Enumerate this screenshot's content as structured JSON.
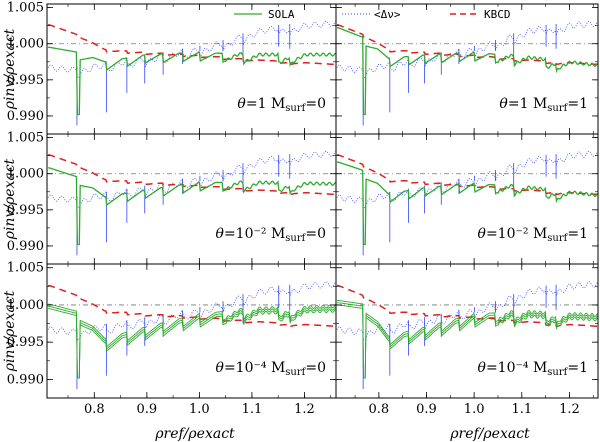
{
  "chart_data": {
    "type": "line",
    "layout": "3x2 grid of panels, shared axes",
    "xlabel": "ρref/ρexact",
    "ylabel": "ρinv/ρexact",
    "xlim": [
      0.71,
      1.26
    ],
    "ylim": [
      0.9875,
      1.0055
    ],
    "x_ticks": [
      0.8,
      0.9,
      1.0,
      1.1,
      1.2
    ],
    "x_tick_labels": [
      "0.8",
      "0.9",
      "1.0",
      "1.1",
      "1.2"
    ],
    "y_ticks": [
      0.99,
      0.995,
      1.0,
      1.005
    ],
    "y_tick_labels": [
      "0.990",
      "0.995",
      "1.000",
      "1.005"
    ],
    "reference_line": 1.0,
    "legend": [
      {
        "label": "SOLA",
        "color": "#2eaa2e",
        "style": "solid"
      },
      {
        "label": "<Δν>",
        "color": "#3344ff",
        "style": "dotted"
      },
      {
        "label": "KBCD",
        "color": "#e02020",
        "style": "dashed"
      }
    ],
    "sawtooth_x": [
      0.767,
      0.823,
      0.862,
      0.896,
      0.931,
      0.968,
      1.001,
      1.045,
      1.083,
      1.151,
      1.172
    ],
    "panels": [
      {
        "theta": "1",
        "msurf": "0",
        "sola": [
          [
            0.715,
            0.9995
          ],
          [
            0.77,
            0.9988
          ],
          [
            0.82,
            0.9975
          ],
          [
            0.9,
            0.9985
          ],
          [
            1.0,
            0.9988
          ],
          [
            1.1,
            0.9985
          ],
          [
            1.255,
            0.9985
          ]
        ],
        "band": 0.0
      },
      {
        "theta": "1",
        "msurf": "1",
        "sola": [
          [
            0.715,
            1.0022
          ],
          [
            0.77,
            1.0008
          ],
          [
            0.82,
            0.998
          ],
          [
            0.9,
            0.99845
          ],
          [
            1.0,
            0.9988
          ],
          [
            1.1,
            0.9982
          ],
          [
            1.255,
            0.99705
          ]
        ],
        "band": 0.0
      },
      {
        "theta": "10⁻²",
        "msurf": "0",
        "sola": [
          [
            0.715,
            1.0008
          ],
          [
            0.77,
            0.9995
          ],
          [
            0.82,
            0.9968
          ],
          [
            0.9,
            0.9978
          ],
          [
            1.0,
            0.9988
          ],
          [
            1.1,
            0.9988
          ],
          [
            1.255,
            0.9986
          ]
        ],
        "band": 0.0
      },
      {
        "theta": "10⁻²",
        "msurf": "1",
        "sola": [
          [
            0.715,
            1.0016
          ],
          [
            0.77,
            1.0004
          ],
          [
            0.82,
            0.9972
          ],
          [
            0.9,
            0.9981
          ],
          [
            1.0,
            0.99865
          ],
          [
            1.1,
            0.9982
          ],
          [
            1.255,
            0.99705
          ]
        ],
        "band": 0.0
      },
      {
        "theta": "10⁻⁴",
        "msurf": "0",
        "sola": [
          [
            0.715,
            0.9998
          ],
          [
            0.77,
            0.9988
          ],
          [
            0.82,
            0.9952
          ],
          [
            0.9,
            0.9968
          ],
          [
            1.0,
            0.9985
          ],
          [
            1.1,
            0.9992
          ],
          [
            1.255,
            0.9995
          ]
        ],
        "band": 0.0006
      },
      {
        "theta": "10⁻⁴",
        "msurf": "1",
        "sola": [
          [
            0.715,
            1.0003
          ],
          [
            0.77,
            0.9998
          ],
          [
            0.82,
            0.9955
          ],
          [
            0.9,
            0.9968
          ],
          [
            1.0,
            0.9985
          ],
          [
            1.1,
            0.9988
          ],
          [
            1.255,
            0.99835
          ]
        ],
        "band": 0.0006
      }
    ],
    "kbcd": [
      [
        0.715,
        1.0026
      ],
      [
        0.77,
        1.0012
      ],
      [
        0.82,
        0.9992
      ],
      [
        0.9,
        0.9988
      ],
      [
        1.0,
        0.9984
      ],
      [
        1.1,
        0.9978
      ],
      [
        1.255,
        0.99715
      ]
    ],
    "delta_nu_baseline": [
      [
        0.715,
        0.9967
      ],
      [
        0.76,
        0.99635
      ],
      [
        0.8,
        0.9968
      ],
      [
        0.9,
        0.998
      ],
      [
        1.0,
        0.9993
      ],
      [
        1.05,
        1.0002
      ],
      [
        1.1,
        1.0015
      ],
      [
        1.15,
        1.0022
      ],
      [
        1.2,
        1.0025
      ],
      [
        1.255,
        1.0028
      ]
    ],
    "delta_nu_spikes": [
      0.9887,
      0.9905,
      0.9932,
      0.9945,
      0.9957,
      0.9972,
      0.999,
      0.999,
      0.9975,
      0.9996,
      0.9993
    ]
  }
}
